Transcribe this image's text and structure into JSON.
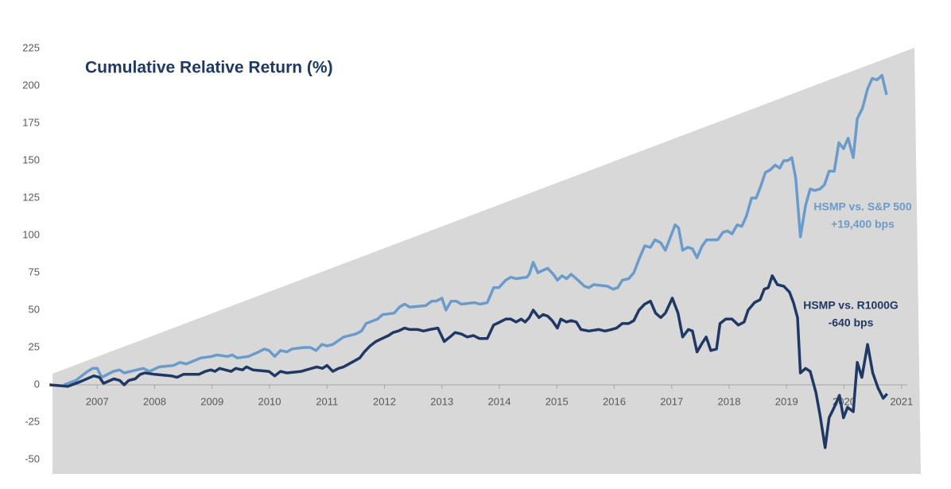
{
  "chart_data": {
    "type": "line",
    "title": "Cumulative Relative Return (%)",
    "annotations": [
      {
        "lines": [
          "HSMP vs. S&P 500",
          "+19,400 bps"
        ],
        "series": 0
      },
      {
        "lines": [
          "HSMP vs. R1000G",
          "-640 bps"
        ],
        "series": 1
      }
    ],
    "xlim": [
      2006,
      2021.1
    ],
    "xticks": [
      2007,
      2008,
      2009,
      2010,
      2011,
      2012,
      2013,
      2014,
      2015,
      2016,
      2017,
      2018,
      2019,
      2020,
      2021
    ],
    "ylim": [
      -50,
      225
    ],
    "yticks": [
      -50,
      -25,
      0,
      25,
      50,
      75,
      100,
      125,
      150,
      175,
      200,
      225
    ],
    "grid": false,
    "series": [
      {
        "name": "HSMP vs. S&P 500",
        "color": "#6a9bcb",
        "x": [
          2006.42,
          2006.63,
          2006.83,
          2006.92,
          2007.0,
          2007.08,
          2007.28,
          2007.39,
          2007.47,
          2007.69,
          2007.8,
          2007.91,
          2008.08,
          2008.33,
          2008.44,
          2008.55,
          2008.8,
          2008.99,
          2009.08,
          2009.27,
          2009.35,
          2009.44,
          2009.63,
          2009.81,
          2009.91,
          2009.99,
          2010.09,
          2010.19,
          2010.3,
          2010.39,
          2010.6,
          2010.71,
          2010.81,
          2010.91,
          2011.0,
          2011.1,
          2011.29,
          2011.5,
          2011.6,
          2011.68,
          2011.88,
          2011.97,
          2012.17,
          2012.26,
          2012.35,
          2012.44,
          2012.72,
          2012.82,
          2012.9,
          2013.0,
          2013.07,
          2013.16,
          2013.25,
          2013.34,
          2013.57,
          2013.66,
          2013.79,
          2013.9,
          2013.99,
          2014.11,
          2014.2,
          2014.29,
          2014.48,
          2014.52,
          2014.59,
          2014.67,
          2014.84,
          2014.94,
          2015.01,
          2015.09,
          2015.17,
          2015.25,
          2015.37,
          2015.48,
          2015.56,
          2015.64,
          2015.88,
          2015.98,
          2016.06,
          2016.14,
          2016.25,
          2016.34,
          2016.43,
          2016.53,
          2016.63,
          2016.71,
          2016.81,
          2016.89,
          2016.99,
          2017.06,
          2017.12,
          2017.19,
          2017.28,
          2017.36,
          2017.44,
          2017.53,
          2017.61,
          2017.8,
          2017.89,
          2017.97,
          2018.05,
          2018.14,
          2018.22,
          2018.3,
          2018.39,
          2018.47,
          2018.55,
          2018.63,
          2018.72,
          2018.8,
          2018.88,
          2018.95,
          2019.02,
          2019.09,
          2019.16,
          2019.24,
          2019.33,
          2019.41,
          2019.49,
          2019.58,
          2019.66,
          2019.74,
          2019.83,
          2019.91,
          2019.99,
          2020.07,
          2020.16,
          2020.23,
          2020.32,
          2020.41,
          2020.49,
          2020.57,
          2020.66,
          2020.74
        ],
        "values": [
          0,
          3,
          9,
          11,
          11,
          5,
          9,
          10,
          8,
          10,
          11,
          9,
          12,
          13,
          15,
          14,
          18,
          19,
          20,
          19,
          20,
          18,
          19,
          22,
          24,
          23,
          19,
          23,
          22,
          24,
          25,
          25,
          23,
          27,
          26,
          27,
          32,
          34,
          36,
          41,
          44,
          47,
          48,
          52,
          54,
          52,
          53,
          56,
          56,
          58,
          50,
          56,
          56,
          54,
          55,
          54,
          55,
          65,
          65,
          70,
          72,
          71,
          72,
          74,
          82,
          75,
          78,
          74,
          70,
          73,
          71,
          74,
          70,
          66,
          65,
          67,
          66,
          64,
          65,
          70,
          71,
          75,
          84,
          93,
          92,
          97,
          95,
          90,
          100,
          107,
          105,
          90,
          92,
          91,
          85,
          93,
          97,
          97,
          102,
          103,
          101,
          107,
          106,
          113,
          125,
          125,
          133,
          142,
          144,
          147,
          145,
          150,
          150,
          152,
          138,
          99,
          120,
          131,
          130,
          131,
          134,
          143,
          143,
          162,
          158,
          165,
          152,
          178,
          185,
          198,
          205,
          204,
          207,
          194
        ]
      },
      {
        "name": "HSMP vs. R1000G",
        "color": "#1f3864",
        "x": [
          2006.17,
          2006.49,
          2006.7,
          2006.94,
          2007.04,
          2007.11,
          2007.29,
          2007.39,
          2007.47,
          2007.55,
          2007.66,
          2007.75,
          2007.83,
          2008.0,
          2008.29,
          2008.39,
          2008.5,
          2008.77,
          2008.88,
          2008.98,
          2009.05,
          2009.13,
          2009.33,
          2009.41,
          2009.53,
          2009.6,
          2009.71,
          2009.99,
          2010.09,
          2010.19,
          2010.3,
          2010.55,
          2010.82,
          2010.92,
          2011.0,
          2011.1,
          2011.2,
          2011.29,
          2011.43,
          2011.57,
          2011.65,
          2011.75,
          2011.85,
          2011.96,
          2012.07,
          2012.15,
          2012.24,
          2012.35,
          2012.44,
          2012.58,
          2012.68,
          2012.79,
          2012.93,
          2013.04,
          2013.14,
          2013.23,
          2013.34,
          2013.44,
          2013.55,
          2013.65,
          2013.79,
          2013.9,
          2014.01,
          2014.11,
          2014.2,
          2014.29,
          2014.38,
          2014.45,
          2014.52,
          2014.59,
          2014.69,
          2014.76,
          2014.84,
          2014.92,
          2015.01,
          2015.07,
          2015.17,
          2015.25,
          2015.34,
          2015.42,
          2015.56,
          2015.73,
          2015.84,
          2015.95,
          2016.04,
          2016.14,
          2016.25,
          2016.34,
          2016.43,
          2016.53,
          2016.63,
          2016.72,
          2016.81,
          2016.89,
          2017.01,
          2017.11,
          2017.19,
          2017.29,
          2017.36,
          2017.44,
          2017.53,
          2017.6,
          2017.68,
          2017.78,
          2017.84,
          2017.94,
          2018.05,
          2018.16,
          2018.26,
          2018.33,
          2018.44,
          2018.54,
          2018.61,
          2018.68,
          2018.75,
          2018.84,
          2018.95,
          2019.05,
          2019.12,
          2019.19,
          2019.24,
          2019.33,
          2019.41,
          2019.51,
          2019.58,
          2019.67,
          2019.74,
          2019.83,
          2019.92,
          2019.99,
          2020.06,
          2020.16,
          2020.23,
          2020.31,
          2020.41,
          2020.5,
          2020.59,
          2020.68,
          2020.75
        ],
        "values": [
          0,
          -1,
          2,
          6,
          5,
          1,
          4,
          3,
          0,
          3,
          4,
          7,
          8,
          7,
          6,
          5,
          7,
          7,
          9,
          10,
          9,
          11,
          9,
          11,
          10,
          12,
          10,
          9,
          6,
          9,
          8,
          9,
          12,
          11,
          13,
          9,
          11,
          12,
          15,
          18,
          22,
          26,
          29,
          31,
          33,
          35,
          36,
          38,
          37,
          37,
          36,
          37,
          38,
          29,
          32,
          35,
          34,
          32,
          33,
          31,
          31,
          40,
          42,
          44,
          44,
          42,
          44,
          42,
          45,
          50,
          45,
          47,
          46,
          43,
          38,
          44,
          42,
          43,
          42,
          37,
          36,
          37,
          36,
          37,
          38,
          41,
          41,
          43,
          50,
          54,
          56,
          48,
          45,
          48,
          58,
          48,
          32,
          37,
          36,
          22,
          28,
          32,
          23,
          24,
          41,
          44,
          44,
          40,
          42,
          50,
          55,
          57,
          64,
          65,
          73,
          67,
          66,
          62,
          55,
          45,
          8,
          11,
          9,
          -5,
          -20,
          -42,
          -22,
          -15,
          -7,
          -22,
          -15,
          -18,
          15,
          5,
          27,
          8,
          -2,
          -9,
          -6
        ]
      }
    ]
  }
}
